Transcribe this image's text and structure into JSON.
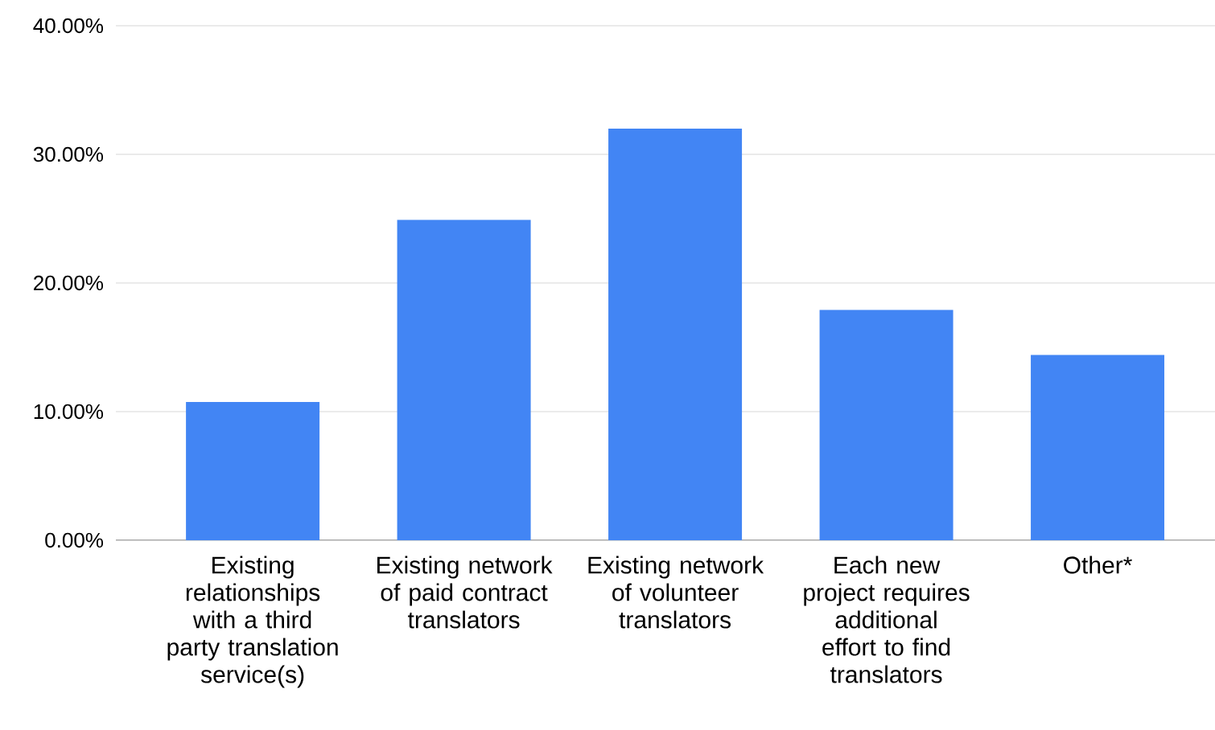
{
  "chart_data": {
    "type": "bar",
    "categories": [
      "Existing relationships with a third party translation service(s)",
      "Existing network of paid contract translators",
      "Existing network of volunteer translators",
      "Each new project requires additional effort to find translators",
      "Other*"
    ],
    "values": [
      10.75,
      24.9,
      32.0,
      17.9,
      14.4
    ],
    "color": "#4285f4",
    "ylim": [
      0,
      40
    ],
    "yticks": [
      {
        "value": 0,
        "label": "0.00%"
      },
      {
        "value": 10,
        "label": "10.00%"
      },
      {
        "value": 20,
        "label": "20.00%"
      },
      {
        "value": 30,
        "label": "30.00%"
      },
      {
        "value": 40,
        "label": "40.00%"
      }
    ],
    "grid": "y"
  }
}
